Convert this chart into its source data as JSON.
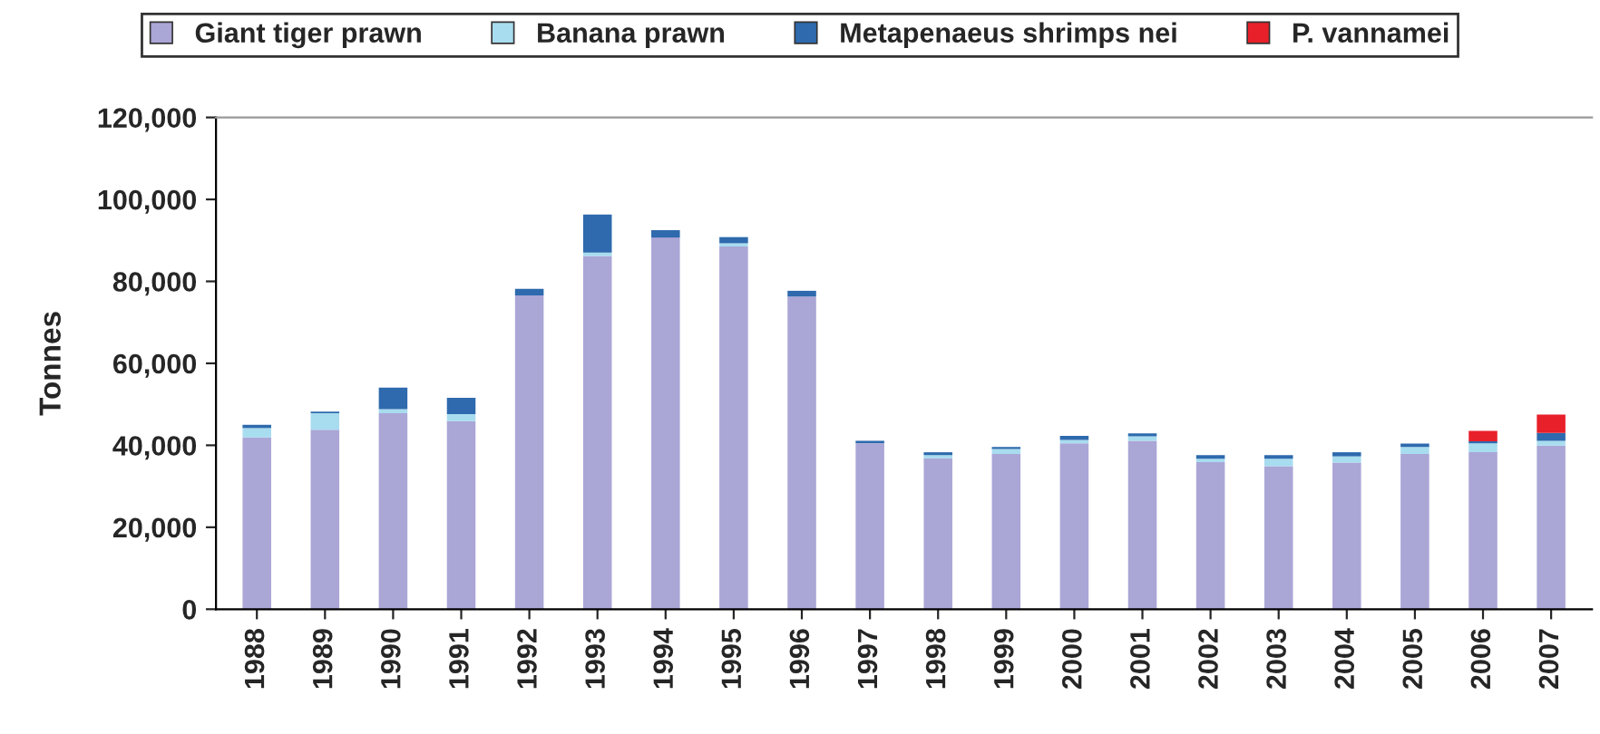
{
  "chart_data": {
    "type": "bar",
    "stacked": true,
    "ylabel": "Tonnes",
    "legend": "top",
    "categories": [
      "1988",
      "1989",
      "1990",
      "1991",
      "1992",
      "1993",
      "1994",
      "1995",
      "1996",
      "1997",
      "1998",
      "1999",
      "2000",
      "2001",
      "2002",
      "2003",
      "2004",
      "2005",
      "2006",
      "2007"
    ],
    "series": [
      {
        "name": "Giant tiger prawn",
        "color": "#aaa6d6",
        "values": [
          41900,
          43800,
          47800,
          45900,
          76600,
          86200,
          90700,
          88500,
          76300,
          40500,
          36800,
          37900,
          40500,
          41100,
          35900,
          34900,
          35800,
          37900,
          38300,
          39900
        ]
      },
      {
        "name": "Banana prawn",
        "color": "#a8dcef",
        "values": [
          2300,
          4000,
          1000,
          1700,
          null,
          800,
          null,
          800,
          null,
          null,
          800,
          1200,
          800,
          1100,
          800,
          1800,
          1500,
          1700,
          2200,
          1200
        ]
      },
      {
        "name": "Metapenaeus shrimps nei",
        "color": "#2e6aad",
        "values": [
          800,
          400,
          5300,
          4000,
          1600,
          9300,
          1800,
          1500,
          1400,
          600,
          700,
          500,
          1000,
          700,
          900,
          900,
          1000,
          800,
          500,
          1900
        ]
      },
      {
        "name": "P. vannamei",
        "color": "#e8202a",
        "values": [
          0,
          0,
          0,
          0,
          0,
          0,
          0,
          0,
          0,
          0,
          0,
          0,
          0,
          0,
          0,
          0,
          0,
          0,
          2500,
          4500
        ]
      }
    ],
    "ylim": [
      0,
      120000
    ],
    "yticks": [
      {
        "value": 0,
        "label": "0"
      },
      {
        "value": 20000,
        "label": "20,000"
      },
      {
        "value": 40000,
        "label": "40,000"
      },
      {
        "value": 60000,
        "label": "60,000"
      },
      {
        "value": 80000,
        "label": "80,000"
      },
      {
        "value": 100000,
        "label": "100,000"
      },
      {
        "value": 120000,
        "label": "120,000"
      }
    ],
    "grid": false
  }
}
